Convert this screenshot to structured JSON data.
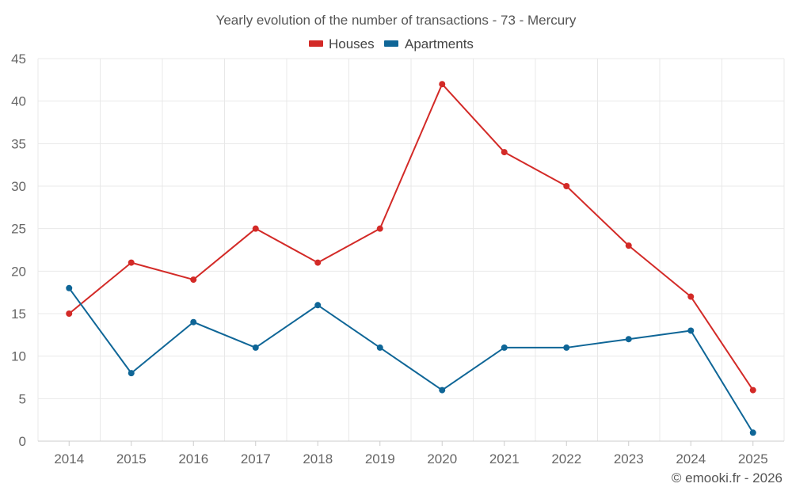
{
  "chart_data": {
    "type": "line",
    "title": "Yearly evolution of the number of transactions - 73 - Mercury",
    "categories": [
      "2014",
      "2015",
      "2016",
      "2017",
      "2018",
      "2019",
      "2020",
      "2021",
      "2022",
      "2023",
      "2024",
      "2025"
    ],
    "series": [
      {
        "name": "Houses",
        "color": "#d32a27",
        "values": [
          15,
          21,
          19,
          25,
          21,
          25,
          42,
          34,
          30,
          23,
          17,
          6
        ]
      },
      {
        "name": "Apartments",
        "color": "#0f6697",
        "values": [
          18,
          8,
          14,
          11,
          16,
          11,
          6,
          11,
          11,
          12,
          13,
          1
        ]
      }
    ],
    "ylim": [
      0,
      45
    ],
    "yticks": [
      0,
      5,
      10,
      15,
      20,
      25,
      30,
      35,
      40,
      45
    ],
    "grid": true,
    "legend_position": "top-center",
    "xlabel": "",
    "ylabel": ""
  },
  "credit": "© emooki.fr - 2026"
}
